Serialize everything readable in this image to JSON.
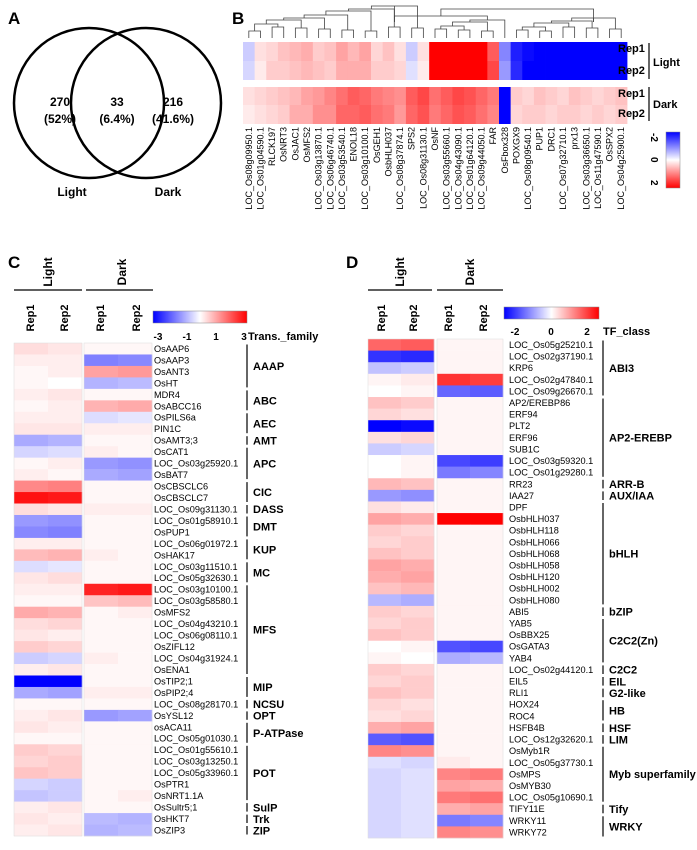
{
  "panel_labels": [
    "A",
    "B",
    "C",
    "D"
  ],
  "venn": {
    "left_count": "270",
    "left_pct": "(52%)",
    "mid_count": "33",
    "mid_pct": "(6.4%)",
    "right_count": "216",
    "right_pct": "(41.6%)",
    "left_label": "Light",
    "right_label": "Dark"
  },
  "panel_b": {
    "columns": [
      "LOC_Os08g09950.1",
      "LOC_Os01g04590.1",
      "RLCK197",
      "OsNRT3",
      "OsJAC1",
      "OsMFS2",
      "LOC_Os03g13870.1",
      "LOC_Os06g46740.1",
      "LOC_Os03g53540.1",
      "ENOL18",
      "LOC_Os03g10100.1",
      "OsGEH1",
      "OsbHLH037",
      "LOC_Os08g37874.1",
      "SPS2",
      "LOC_Os08g31130.1",
      "OsNF",
      "LOC_Os03g55660.1",
      "LOC_Os04g43090.1",
      "LOC_Os01g64120.1",
      "LOC_Os09g44050.1",
      "FAR",
      "OsFbox328",
      "POXGX9",
      "LOC_Os08g09540.1",
      "PUP1",
      "DRC1",
      "LOC_Os07g32710.1",
      "prx13",
      "LOC_Os03g36650.1",
      "LOC_Os11g47590.1",
      "OsSPX2",
      "LOC_Os04g25900.1"
    ],
    "rows": [
      "Rep1",
      "Rep2",
      "Rep1",
      "Rep2"
    ],
    "groups": [
      "Light",
      "Dark"
    ],
    "scale_ticks": [
      "-2",
      "0",
      "2"
    ],
    "values": [
      [
        -0.5,
        0.3,
        0.4,
        0.6,
        0.7,
        0.8,
        0.5,
        0.6,
        0.9,
        0.7,
        0.9,
        0.4,
        0.6,
        0.3,
        -0.5,
        0.3,
        3.2,
        2.8,
        2.6,
        3.0,
        2.7,
        1.6,
        -1.2,
        -2.2,
        -2.4,
        -2.6,
        -2.7,
        -2.8,
        -2.6,
        -2.8,
        -2.5,
        -2.9,
        -2.7
      ],
      [
        -0.4,
        0.2,
        0.5,
        0.5,
        0.6,
        0.7,
        0.6,
        0.5,
        0.8,
        0.8,
        0.8,
        0.5,
        0.5,
        0.4,
        -0.3,
        0.2,
        3.0,
        2.6,
        2.8,
        2.9,
        2.9,
        1.8,
        -1.0,
        -2.1,
        -2.5,
        -2.7,
        -2.6,
        -2.9,
        -2.7,
        -2.6,
        -2.6,
        -2.8,
        -2.8
      ],
      [
        0.3,
        0.4,
        0.5,
        0.6,
        0.7,
        0.9,
        1.0,
        1.2,
        1.4,
        1.6,
        1.5,
        1.3,
        1.2,
        1.1,
        1.6,
        1.8,
        1.4,
        1.6,
        1.8,
        1.7,
        1.5,
        1.3,
        -4.0,
        0.5,
        0.4,
        0.6,
        0.5,
        0.4,
        0.6,
        0.5,
        0.4,
        0.5,
        0.6
      ],
      [
        0.2,
        0.3,
        0.4,
        0.5,
        0.8,
        0.8,
        1.1,
        1.1,
        1.5,
        1.5,
        1.6,
        1.4,
        1.3,
        1.0,
        1.5,
        1.7,
        1.3,
        1.5,
        1.7,
        1.6,
        1.4,
        1.2,
        -4.0,
        0.4,
        0.5,
        0.5,
        0.4,
        0.5,
        0.5,
        0.4,
        0.5,
        0.4,
        0.5
      ]
    ]
  },
  "panel_c": {
    "group_light": "Light",
    "group_dark": "Dark",
    "rep1": "Rep1",
    "rep2": "Rep2",
    "scale_ticks": [
      "-3",
      "-1",
      "1",
      "3"
    ],
    "family_header": "Trans._family",
    "genes": [
      "OsAAP6",
      "OsAAP3",
      "OsANT3",
      "OsHT",
      "MDR4",
      "OsABCC16",
      "OsPILS6a",
      "PIN1C",
      "OsAMT3;3",
      "OsCAT1",
      "LOC_Os03g25920.1",
      "OsBAT7",
      "OsCBSCLC6",
      "OsCBSCLC7",
      "LOC_Os09g31130.1",
      "LOC_Os01g58910.1",
      "OsPUP1",
      "LOC_Os06g01972.1",
      "OsHAK17",
      "LOC_Os03g11510.1",
      "LOC_Os05g32630.1",
      "LOC_Os03g10100.1",
      "LOC_Os03g58580.1",
      "OsMFS2",
      "LOC_Os04g43210.1",
      "LOC_Os06g08110.1",
      "OsZIFL12",
      "LOC_Os04g31924.1",
      "OsENA1",
      "OsTIP2;1",
      "OsPIP2;4",
      "LOC_Os08g28170.1",
      "OsYSL12",
      "osACA11",
      "LOC_Os05g01030.1",
      "LOC_Os01g55610.1",
      "LOC_Os03g13250.1",
      "LOC_Os05g33960.1",
      "OsPTR1",
      "OsNRT1.1A",
      "OsSultr5;1",
      "OsHKT7",
      "OsZIP3"
    ],
    "values": [
      [
        0.4,
        0.3,
        0.1,
        0.1
      ],
      [
        0.2,
        0.2,
        -1.5,
        -1.4
      ],
      [
        0.1,
        0.2,
        1.1,
        1.2
      ],
      [
        0.1,
        0.0,
        -0.9,
        -0.8
      ],
      [
        0.2,
        0.3,
        0.1,
        0.1
      ],
      [
        0.1,
        0.2,
        0.9,
        1.0
      ],
      [
        0.2,
        0.2,
        -0.4,
        -0.3
      ],
      [
        0.3,
        0.3,
        0.2,
        0.2
      ],
      [
        -1.0,
        -0.9,
        0.1,
        0.1
      ],
      [
        -0.5,
        -0.4,
        0.2,
        0.1
      ],
      [
        0.1,
        0.2,
        -1.2,
        -1.3
      ],
      [
        0.2,
        0.1,
        -1.0,
        -1.1
      ],
      [
        1.4,
        1.5,
        0.1,
        0.1
      ],
      [
        2.8,
        2.7,
        0.1,
        0.1
      ],
      [
        0.4,
        0.3,
        0.2,
        0.2
      ],
      [
        -1.2,
        -1.3,
        0.1,
        0.1
      ],
      [
        -1.4,
        -1.5,
        0.1,
        0.1
      ],
      [
        0.2,
        0.2,
        0.1,
        0.1
      ],
      [
        0.8,
        0.9,
        0.2,
        0.1
      ],
      [
        -0.4,
        -0.3,
        0.1,
        0.1
      ],
      [
        0.3,
        0.4,
        0.1,
        0.1
      ],
      [
        0.2,
        0.2,
        2.6,
        2.7
      ],
      [
        0.1,
        0.1,
        0.7,
        0.8
      ],
      [
        1.0,
        0.9,
        0.1,
        0.2
      ],
      [
        0.4,
        0.5,
        0.1,
        0.1
      ],
      [
        0.3,
        0.2,
        0.1,
        0.1
      ],
      [
        0.6,
        0.5,
        0.1,
        0.1
      ],
      [
        -0.6,
        -0.5,
        0.2,
        0.1
      ],
      [
        0.2,
        0.3,
        0.1,
        0.1
      ],
      [
        -3.2,
        -3.1,
        0.1,
        0.1
      ],
      [
        -1.0,
        -1.1,
        0.2,
        0.2
      ],
      [
        0.1,
        0.1,
        0.1,
        0.1
      ],
      [
        0.2,
        0.3,
        -1.2,
        -1.1
      ],
      [
        0.3,
        0.2,
        0.1,
        0.1
      ],
      [
        0.1,
        0.1,
        0.1,
        0.1
      ],
      [
        0.6,
        0.5,
        0.1,
        0.1
      ],
      [
        0.5,
        0.6,
        0.1,
        0.1
      ],
      [
        0.7,
        0.6,
        0.1,
        0.1
      ],
      [
        -0.5,
        -0.6,
        0.1,
        0.1
      ],
      [
        -0.7,
        -0.6,
        0.1,
        0.2
      ],
      [
        0.2,
        0.3,
        0.1,
        0.1
      ],
      [
        0.3,
        0.2,
        -0.8,
        -0.9
      ],
      [
        0.2,
        0.3,
        -0.9,
        -0.8
      ]
    ],
    "families": [
      {
        "name": "AAAP",
        "start": 0,
        "end": 3
      },
      {
        "name": "ABC",
        "start": 4,
        "end": 5
      },
      {
        "name": "AEC",
        "start": 6,
        "end": 7
      },
      {
        "name": "AMT",
        "start": 8,
        "end": 8
      },
      {
        "name": "APC",
        "start": 9,
        "end": 11
      },
      {
        "name": "CIC",
        "start": 12,
        "end": 13
      },
      {
        "name": "DASS",
        "start": 14,
        "end": 14
      },
      {
        "name": "DMT",
        "start": 15,
        "end": 16
      },
      {
        "name": "KUP",
        "start": 17,
        "end": 18
      },
      {
        "name": "MC",
        "start": 19,
        "end": 20
      },
      {
        "name": "MFS",
        "start": 21,
        "end": 28
      },
      {
        "name": "MIP",
        "start": 29,
        "end": 30
      },
      {
        "name": "NCSU",
        "start": 31,
        "end": 31
      },
      {
        "name": "OPT",
        "start": 32,
        "end": 32
      },
      {
        "name": "P-ATPase",
        "start": 33,
        "end": 34
      },
      {
        "name": "POT",
        "start": 35,
        "end": 39
      },
      {
        "name": "SulP",
        "start": 40,
        "end": 40
      },
      {
        "name": "Trk",
        "start": 41,
        "end": 41
      },
      {
        "name": "ZIP",
        "start": 42,
        "end": 42
      }
    ]
  },
  "panel_d": {
    "group_light": "Light",
    "group_dark": "Dark",
    "rep1": "Rep1",
    "rep2": "Rep2",
    "scale_ticks": [
      "-2",
      "0",
      "2"
    ],
    "class_header": "TF_class",
    "genes": [
      "LOC_Os05g25210.1",
      "LOC_Os02g37190.1",
      "KRP6",
      "LOC_Os02g47840.1",
      "LOC_Os09g26670.1",
      "AP2/EREBP86",
      "ERF94",
      "PLT2",
      "ERF96",
      "SUB1C",
      "LOC_Os03g59320.1",
      "LOC_Os01g29280.1",
      "RR23",
      "IAA27",
      "DPF",
      "OsbHLH037",
      "OsbHLH118",
      "OsbHLH066",
      "OsbHLH068",
      "OsbHLH058",
      "OsbHLH120",
      "OsbHLH002",
      "OsbHLH080",
      "ABI5",
      "YAB5",
      "OsBBX25",
      "OsGATA3",
      "YAB4",
      "LOC_Os02g44120.1",
      "EIL5",
      "RLI1",
      "HOX24",
      "ROC4",
      "HSFB4B",
      "LOC_Os12g32620.1",
      "OsMyb1R",
      "LOC_Os05g37730.1",
      "OsMPS",
      "OsMYB30",
      "LOC_Os05g10690.1",
      "TIFY11E",
      "WRKY11",
      "WRKY72"
    ],
    "values": [
      [
        1.5,
        1.6,
        0.1,
        0.1
      ],
      [
        -2.0,
        -2.1,
        0.1,
        0.1
      ],
      [
        -0.6,
        -0.5,
        0.1,
        0.1
      ],
      [
        0.1,
        0.2,
        2.0,
        1.9
      ],
      [
        0.0,
        0.1,
        -1.5,
        -1.6
      ],
      [
        0.6,
        0.5,
        0.1,
        0.1
      ],
      [
        0.4,
        0.3,
        0.1,
        0.1
      ],
      [
        -2.5,
        -2.4,
        0.1,
        0.1
      ],
      [
        0.3,
        0.4,
        0.1,
        0.1
      ],
      [
        -0.5,
        -0.4,
        0.1,
        0.1
      ],
      [
        0.0,
        0.1,
        -1.8,
        -1.9
      ],
      [
        0.0,
        0.1,
        -1.3,
        -1.2
      ],
      [
        0.7,
        0.6,
        0.1,
        0.1
      ],
      [
        -1.0,
        -1.1,
        0.1,
        0.1
      ],
      [
        0.3,
        0.2,
        0.1,
        0.1
      ],
      [
        0.9,
        0.8,
        2.6,
        2.5
      ],
      [
        0.5,
        0.4,
        0.1,
        0.1
      ],
      [
        0.4,
        0.5,
        0.1,
        0.1
      ],
      [
        0.6,
        0.5,
        0.1,
        0.1
      ],
      [
        0.9,
        0.8,
        0.1,
        0.1
      ],
      [
        0.8,
        0.9,
        0.1,
        0.1
      ],
      [
        0.6,
        0.7,
        0.1,
        0.1
      ],
      [
        -0.7,
        -0.8,
        0.1,
        0.1
      ],
      [
        0.5,
        0.4,
        0.1,
        0.1
      ],
      [
        0.4,
        0.5,
        0.1,
        0.1
      ],
      [
        0.6,
        0.5,
        0.1,
        0.1
      ],
      [
        0.0,
        0.1,
        -1.7,
        -1.8
      ],
      [
        0.1,
        0.0,
        -0.8,
        -0.7
      ],
      [
        0.5,
        0.4,
        0.1,
        0.1
      ],
      [
        0.4,
        0.5,
        0.1,
        0.1
      ],
      [
        0.6,
        0.5,
        0.1,
        0.1
      ],
      [
        0.4,
        0.3,
        0.1,
        0.1
      ],
      [
        0.3,
        0.4,
        0.1,
        0.1
      ],
      [
        0.8,
        0.9,
        0.1,
        0.1
      ],
      [
        -1.6,
        -1.7,
        0.1,
        0.1
      ],
      [
        1.2,
        1.1,
        0.1,
        0.1
      ],
      [
        -0.3,
        -0.4,
        0.2,
        0.1
      ],
      [
        -0.4,
        -0.3,
        1.2,
        1.3
      ],
      [
        -0.4,
        -0.3,
        0.9,
        0.8
      ],
      [
        -0.4,
        -0.3,
        1.3,
        1.4
      ],
      [
        -0.4,
        -0.3,
        0.8,
        0.9
      ],
      [
        -0.4,
        -0.3,
        -1.3,
        -1.2
      ],
      [
        -0.4,
        -0.3,
        1.2,
        1.1
      ]
    ],
    "classes": [
      {
        "name": "ABI3",
        "start": 0,
        "end": 4
      },
      {
        "name": "AP2-EREBP",
        "start": 5,
        "end": 11
      },
      {
        "name": "ARR-B",
        "start": 12,
        "end": 12
      },
      {
        "name": "AUX/IAA",
        "start": 13,
        "end": 13
      },
      {
        "name": "bHLH",
        "start": 14,
        "end": 22
      },
      {
        "name": "bZIP",
        "start": 23,
        "end": 23
      },
      {
        "name": "C2C2(Zn)",
        "start": 24,
        "end": 27
      },
      {
        "name": "C2C2",
        "start": 28,
        "end": 28
      },
      {
        "name": "EIL",
        "start": 29,
        "end": 29
      },
      {
        "name": "G2-like",
        "start": 30,
        "end": 30
      },
      {
        "name": "HB",
        "start": 31,
        "end": 32
      },
      {
        "name": "HSF",
        "start": 33,
        "end": 33
      },
      {
        "name": "LIM",
        "start": 34,
        "end": 34
      },
      {
        "name": "Myb superfamily",
        "start": 35,
        "end": 39
      },
      {
        "name": "Tify",
        "start": 40,
        "end": 40
      },
      {
        "name": "WRKY",
        "start": 41,
        "end": 42
      }
    ]
  },
  "chart_data": [
    {
      "type": "venn",
      "sets": [
        {
          "name": "Light",
          "only": 270,
          "pct": "52%"
        },
        {
          "name": "Dark",
          "only": 216,
          "pct": "41.6%"
        }
      ],
      "intersection": 33,
      "intersection_pct": "6.4%"
    },
    {
      "type": "heatmap",
      "panel": "B",
      "ylim": [
        -2,
        2
      ],
      "rows": [
        "Light Rep1",
        "Light Rep2",
        "Dark Rep1",
        "Dark Rep2"
      ]
    },
    {
      "type": "heatmap",
      "panel": "C",
      "ylim": [
        -3,
        3
      ],
      "columns": [
        "Light Rep1",
        "Light Rep2",
        "Dark Rep1",
        "Dark Rep2"
      ]
    },
    {
      "type": "heatmap",
      "panel": "D",
      "ylim": [
        -2,
        2
      ],
      "columns": [
        "Light Rep1",
        "Light Rep2",
        "Dark Rep1",
        "Dark Rep2"
      ]
    }
  ]
}
